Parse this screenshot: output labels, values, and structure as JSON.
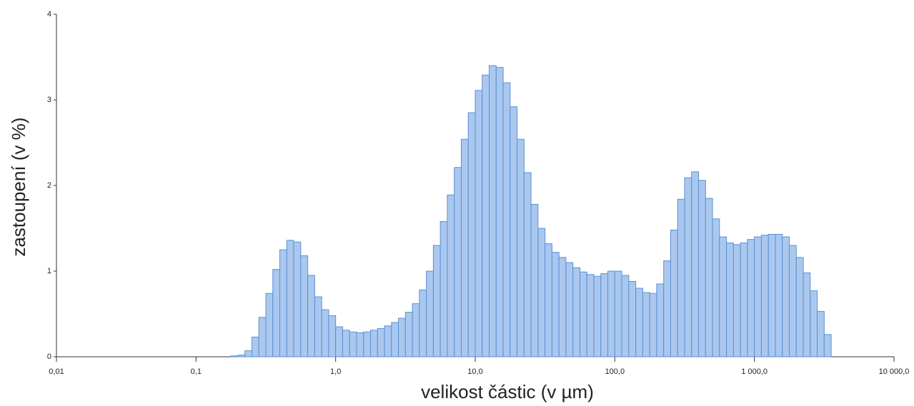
{
  "chart_data": {
    "type": "histogram",
    "x_label": "velikost částic (v µm)",
    "y_label": "zastoupení (v %)",
    "bins": [
      0.1778,
      0.1995,
      0.2239,
      0.2512,
      0.2818,
      0.3162,
      0.3548,
      0.3981,
      0.4467,
      0.5012,
      0.5623,
      0.631,
      0.7079,
      0.7943,
      0.8913,
      1.0,
      1.122,
      1.259,
      1.413,
      1.585,
      1.778,
      1.995,
      2.239,
      2.512,
      2.818,
      3.162,
      3.548,
      3.981,
      4.467,
      5.012,
      5.623,
      6.31,
      7.079,
      7.943,
      8.913,
      10,
      11.22,
      12.59,
      14.13,
      15.85,
      17.78,
      19.95,
      22.39,
      25.12,
      28.18,
      31.62,
      35.48,
      39.81,
      44.67,
      50.12,
      56.23,
      63.1,
      70.79,
      79.43,
      89.13,
      100,
      112.2,
      125.9,
      141.3,
      158.5,
      177.8,
      199.5,
      223.9,
      251.2,
      281.8,
      316.2,
      354.8,
      398.1,
      446.7,
      501.2,
      562.3,
      631.0,
      707.9,
      794.3,
      891.3,
      1000,
      1122,
      1259,
      1413,
      1585,
      1778,
      1995,
      2239,
      2512,
      2818,
      3162,
      3548
    ],
    "values": [
      0.01,
      0.02,
      0.07,
      0.23,
      0.46,
      0.74,
      1.02,
      1.25,
      1.36,
      1.34,
      1.18,
      0.95,
      0.7,
      0.55,
      0.48,
      0.35,
      0.31,
      0.29,
      0.28,
      0.29,
      0.31,
      0.33,
      0.36,
      0.4,
      0.45,
      0.52,
      0.62,
      0.78,
      1.0,
      1.3,
      1.58,
      1.89,
      2.21,
      2.54,
      2.85,
      3.11,
      3.29,
      3.4,
      3.38,
      3.2,
      2.92,
      2.54,
      2.15,
      1.78,
      1.5,
      1.32,
      1.22,
      1.16,
      1.1,
      1.04,
      0.99,
      0.96,
      0.94,
      0.97,
      1.0,
      1.0,
      0.95,
      0.88,
      0.8,
      0.75,
      0.74,
      0.85,
      1.12,
      1.48,
      1.84,
      2.09,
      2.16,
      2.06,
      1.85,
      1.61,
      1.4,
      1.33,
      1.31,
      1.33,
      1.37,
      1.4,
      1.42,
      1.43,
      1.43,
      1.4,
      1.3,
      1.16,
      0.98,
      0.77,
      0.53,
      0.26
    ],
    "color": "#aac8ee",
    "edge_color": "#5b8fd6",
    "xscale": "log",
    "xlim": [
      0.01,
      10000
    ],
    "ylim": [
      0,
      4
    ],
    "xticks": [
      {
        "value": 0.01,
        "label": "0,01"
      },
      {
        "value": 0.1,
        "label": "0,1"
      },
      {
        "value": 1,
        "label": "1,0"
      },
      {
        "value": 10,
        "label": "10,0"
      },
      {
        "value": 100,
        "label": "100,0"
      },
      {
        "value": 1000,
        "label": "1 000,0"
      },
      {
        "value": 10000,
        "label": "10 000,0"
      }
    ],
    "yticks": [
      0,
      1,
      2,
      3,
      4
    ]
  }
}
